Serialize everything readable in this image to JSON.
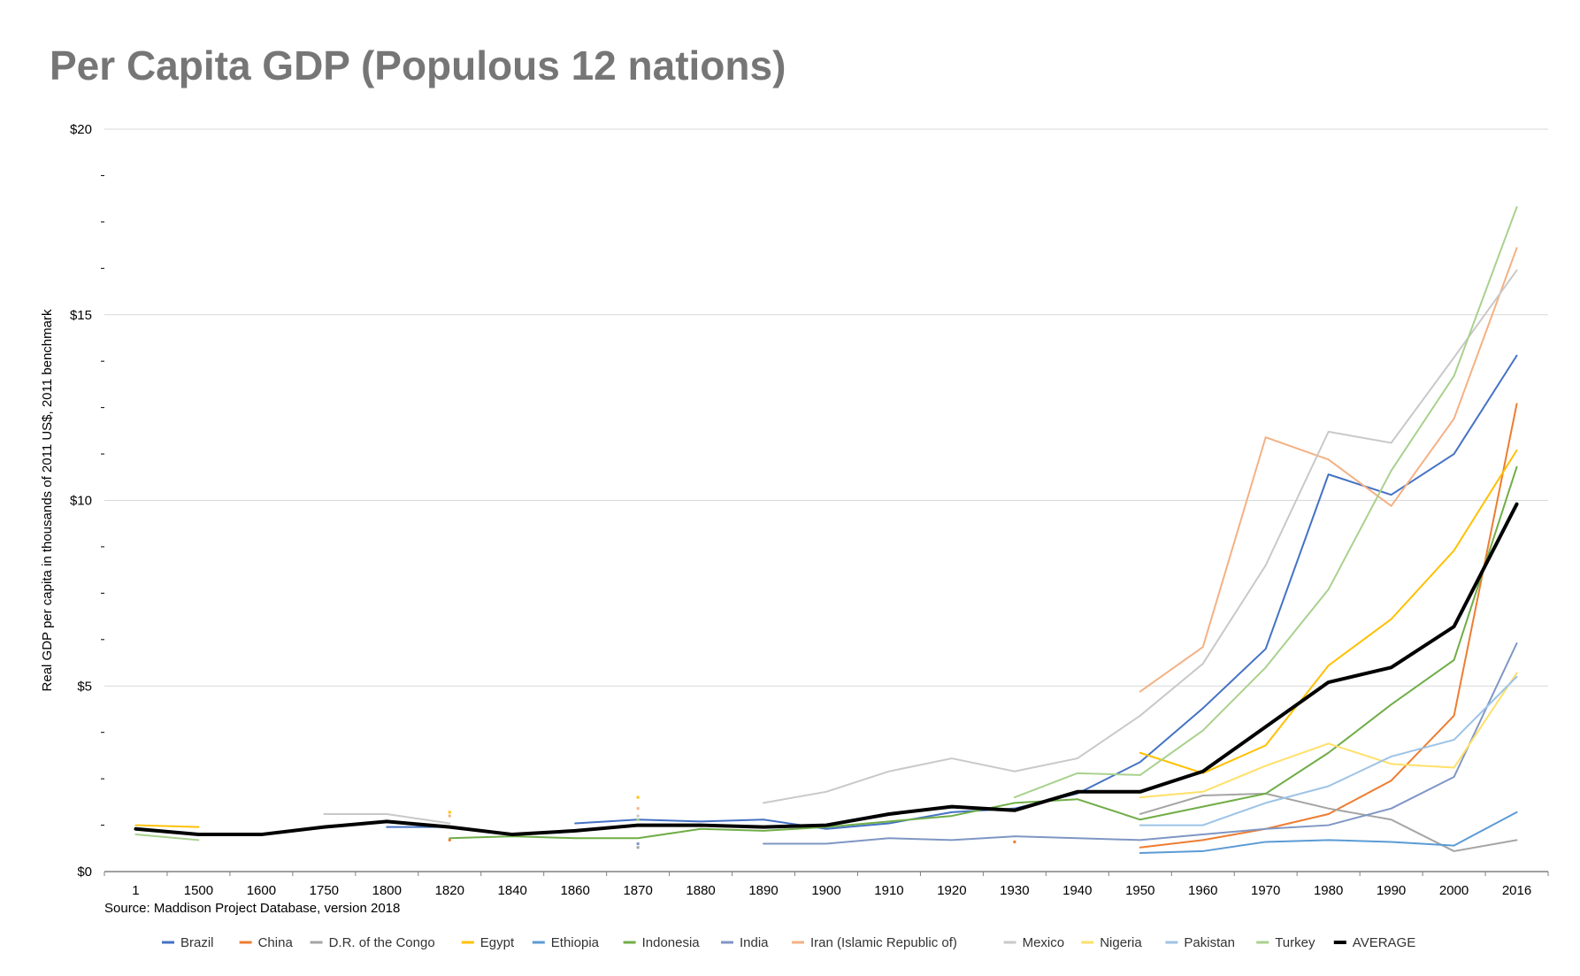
{
  "chart_data": {
    "type": "line",
    "title": "Per Capita GDP (Populous 12 nations)",
    "ylabel": "Real GDP per capita in thousands of 2011 US$, 2011 benchmark",
    "xlabel": "",
    "source": "Source: Maddison Project Database, version 2018",
    "categories": [
      "1",
      "1500",
      "1600",
      "1750",
      "1800",
      "1820",
      "1840",
      "1860",
      "1870",
      "1880",
      "1890",
      "1900",
      "1910",
      "1920",
      "1930",
      "1940",
      "1950",
      "1960",
      "1970",
      "1980",
      "1990",
      "2000",
      "2016"
    ],
    "ylim": [
      0,
      20
    ],
    "y_ticks": [
      {
        "value": 0,
        "label": "$0"
      },
      {
        "value": 5,
        "label": "$5"
      },
      {
        "value": 10,
        "label": "$10"
      },
      {
        "value": 15,
        "label": "$15"
      },
      {
        "value": 20,
        "label": "$20"
      }
    ],
    "y_minor_step": 1.25,
    "grid": true,
    "legend_position": "bottom",
    "series": [
      {
        "name": "Brazil",
        "color": "#4472C4",
        "width": 2,
        "values": [
          null,
          null,
          null,
          null,
          1.2,
          1.2,
          null,
          1.3,
          1.4,
          1.35,
          1.4,
          1.15,
          1.3,
          1.6,
          1.7,
          2.1,
          2.95,
          4.4,
          6.0,
          10.7,
          10.15,
          11.25,
          13.9
        ]
      },
      {
        "name": "China",
        "color": "#ED7D31",
        "width": 2,
        "values": [
          null,
          null,
          null,
          null,
          null,
          0.85,
          null,
          null,
          null,
          null,
          null,
          null,
          null,
          null,
          0.8,
          null,
          0.65,
          0.85,
          1.15,
          1.55,
          2.45,
          4.2,
          12.6
        ]
      },
      {
        "name": "D.R. of the Congo",
        "color": "#A5A5A5",
        "width": 2,
        "values": [
          null,
          null,
          null,
          null,
          null,
          null,
          null,
          null,
          0.65,
          null,
          null,
          null,
          null,
          null,
          null,
          null,
          1.55,
          2.05,
          2.1,
          1.7,
          1.4,
          0.55,
          0.85
        ]
      },
      {
        "name": "Egypt",
        "color": "#FFC000",
        "width": 2,
        "values": [
          1.25,
          1.2,
          null,
          null,
          null,
          1.6,
          null,
          null,
          2.0,
          null,
          null,
          null,
          null,
          null,
          null,
          null,
          3.2,
          2.65,
          3.4,
          5.55,
          6.8,
          8.65,
          11.35
        ]
      },
      {
        "name": "Ethiopia",
        "color": "#5B9BD5",
        "width": 2,
        "values": [
          null,
          null,
          null,
          null,
          null,
          null,
          null,
          null,
          null,
          null,
          null,
          null,
          null,
          null,
          null,
          null,
          0.5,
          0.55,
          0.8,
          0.85,
          0.8,
          0.7,
          1.6
        ]
      },
      {
        "name": "Indonesia",
        "color": "#70AD47",
        "width": 2,
        "values": [
          null,
          null,
          null,
          null,
          null,
          0.9,
          0.95,
          0.9,
          0.9,
          1.15,
          1.1,
          1.2,
          1.35,
          1.5,
          1.85,
          1.95,
          1.4,
          1.75,
          2.1,
          3.2,
          4.5,
          5.7,
          10.9
        ]
      },
      {
        "name": "India",
        "color": "#7F96C4",
        "width": 2,
        "values": [
          null,
          null,
          null,
          null,
          null,
          null,
          null,
          null,
          0.75,
          null,
          0.75,
          0.75,
          0.9,
          0.85,
          0.95,
          0.9,
          0.85,
          1.0,
          1.15,
          1.25,
          1.7,
          2.55,
          6.15
        ]
      },
      {
        "name": "Iran (Islamic Republic of)",
        "color": "#F4B183",
        "width": 2,
        "values": [
          null,
          null,
          null,
          null,
          null,
          1.5,
          null,
          null,
          1.7,
          null,
          null,
          null,
          null,
          null,
          null,
          null,
          4.85,
          6.05,
          11.7,
          11.1,
          9.85,
          12.2,
          16.8
        ]
      },
      {
        "name": "Mexico",
        "color": "#C9C9C9",
        "width": 2,
        "values": [
          null,
          null,
          null,
          1.55,
          1.55,
          1.3,
          null,
          null,
          1.5,
          null,
          1.85,
          2.15,
          2.7,
          3.05,
          2.7,
          3.05,
          4.2,
          5.6,
          8.25,
          11.85,
          11.55,
          13.85,
          16.2
        ]
      },
      {
        "name": "Nigeria",
        "color": "#FFE06A",
        "width": 2,
        "values": [
          null,
          null,
          null,
          null,
          null,
          null,
          null,
          null,
          null,
          null,
          null,
          null,
          null,
          null,
          null,
          null,
          2.0,
          2.15,
          2.85,
          3.45,
          2.9,
          2.8,
          5.35
        ]
      },
      {
        "name": "Pakistan",
        "color": "#9DC3E6",
        "width": 2,
        "values": [
          null,
          null,
          null,
          null,
          null,
          null,
          null,
          null,
          null,
          null,
          null,
          null,
          null,
          null,
          null,
          null,
          1.25,
          1.25,
          1.85,
          2.3,
          3.1,
          3.55,
          5.25
        ]
      },
      {
        "name": "Turkey",
        "color": "#A9D18E",
        "width": 2,
        "values": [
          1.0,
          0.85,
          null,
          null,
          null,
          null,
          null,
          null,
          1.4,
          null,
          null,
          null,
          null,
          null,
          2.0,
          2.65,
          2.6,
          3.8,
          5.5,
          7.6,
          10.8,
          13.35,
          17.9
        ]
      },
      {
        "name": "AVERAGE",
        "color": "#000000",
        "width": 4,
        "values": [
          1.15,
          1.0,
          1.0,
          1.2,
          1.35,
          1.2,
          1.0,
          1.1,
          1.25,
          1.25,
          1.2,
          1.25,
          1.55,
          1.75,
          1.65,
          2.15,
          2.15,
          2.7,
          3.9,
          5.1,
          5.5,
          6.6,
          9.9
        ]
      }
    ]
  }
}
